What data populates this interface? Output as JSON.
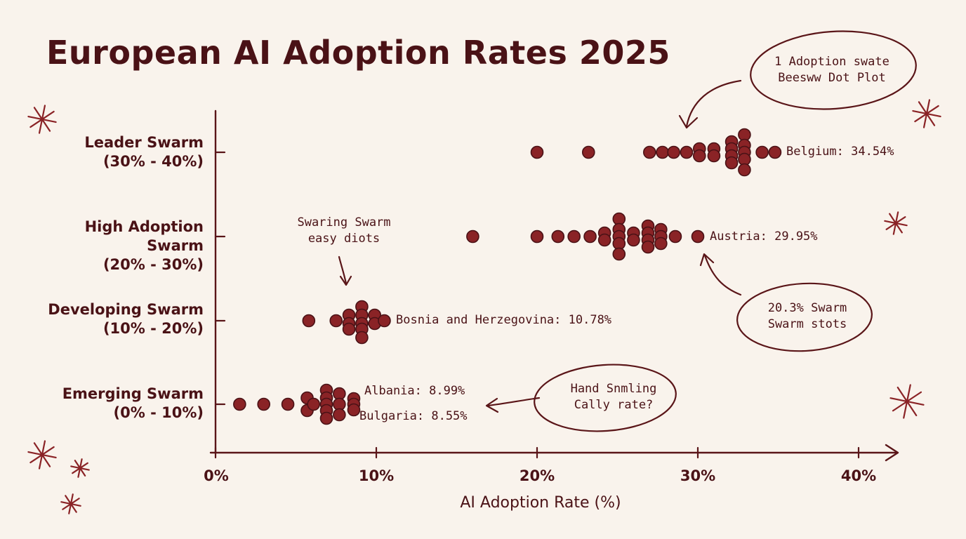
{
  "chart_data": {
    "type": "scatter",
    "subtype": "beeswarm",
    "title": "European AI Adoption Rates 2025",
    "xlabel": "AI Adoption Rate (%)",
    "xlim": [
      0,
      40
    ],
    "xticks": [
      "0%",
      "10%",
      "20%",
      "30%",
      "40%"
    ],
    "categories": [
      {
        "name": "Leader Swarm",
        "range": "(30% - 40%)"
      },
      {
        "name": "High Adoption Swarm",
        "range": "(20% - 30%)"
      },
      {
        "name": "Developing Swarm",
        "range": "(10% - 20%)"
      },
      {
        "name": "Emerging Swarm",
        "range": "(0% - 10%)"
      }
    ],
    "series": [
      {
        "category": "Leader Swarm",
        "points": [
          [
            20.0,
            0
          ],
          [
            23.2,
            0
          ],
          [
            27.0,
            0
          ],
          [
            27.8,
            0
          ],
          [
            28.5,
            0
          ],
          [
            29.3,
            0
          ],
          [
            30.1,
            0.5
          ],
          [
            30.1,
            -0.5
          ],
          [
            31.0,
            0.5
          ],
          [
            31.0,
            -0.5
          ],
          [
            32.1,
            1.5
          ],
          [
            32.1,
            0.5
          ],
          [
            32.1,
            -0.5
          ],
          [
            32.1,
            -1.5
          ],
          [
            32.9,
            2.5
          ],
          [
            32.9,
            1
          ],
          [
            32.9,
            0
          ],
          [
            32.9,
            -1
          ],
          [
            32.9,
            -2.5
          ],
          [
            34.0,
            0
          ],
          [
            34.8,
            0
          ]
        ]
      },
      {
        "category": "High Adoption Swarm",
        "points": [
          [
            16.0,
            0
          ],
          [
            20.0,
            0
          ],
          [
            21.3,
            0
          ],
          [
            22.3,
            0
          ],
          [
            23.3,
            0
          ],
          [
            24.2,
            0.5
          ],
          [
            24.2,
            -0.5
          ],
          [
            25.1,
            2.5
          ],
          [
            25.1,
            1
          ],
          [
            25.1,
            0
          ],
          [
            25.1,
            -1
          ],
          [
            25.1,
            -2.5
          ],
          [
            26.0,
            0.5
          ],
          [
            26.0,
            -0.5
          ],
          [
            26.9,
            1.5
          ],
          [
            26.9,
            0.5
          ],
          [
            26.9,
            -0.5
          ],
          [
            26.9,
            -1.5
          ],
          [
            27.7,
            1
          ],
          [
            27.7,
            0
          ],
          [
            27.7,
            -1
          ],
          [
            28.6,
            0
          ],
          [
            30.0,
            0
          ]
        ]
      },
      {
        "category": "Developing Swarm",
        "points": [
          [
            5.8,
            0
          ],
          [
            7.5,
            0
          ],
          [
            8.3,
            0.8
          ],
          [
            8.3,
            -0.4
          ],
          [
            8.3,
            -1.2
          ],
          [
            9.1,
            2
          ],
          [
            9.1,
            0.8
          ],
          [
            9.1,
            -0.4
          ],
          [
            9.1,
            -1.2
          ],
          [
            9.1,
            -2.4
          ],
          [
            9.9,
            0.8
          ],
          [
            9.9,
            -0.4
          ],
          [
            10.5,
            0
          ]
        ]
      },
      {
        "category": "Emerging Swarm",
        "points": [
          [
            1.5,
            0
          ],
          [
            3.0,
            0
          ],
          [
            4.5,
            0
          ],
          [
            5.7,
            0.9
          ],
          [
            5.7,
            -0.9
          ],
          [
            6.1,
            0
          ],
          [
            6.9,
            2
          ],
          [
            6.9,
            0.9
          ],
          [
            6.9,
            0
          ],
          [
            6.9,
            -0.9
          ],
          [
            6.9,
            -2
          ],
          [
            7.7,
            1.5
          ],
          [
            7.7,
            0
          ],
          [
            7.7,
            -1.5
          ],
          [
            8.6,
            0.8
          ],
          [
            8.6,
            0
          ],
          [
            8.6,
            -0.8
          ]
        ]
      }
    ],
    "point_labels": [
      {
        "category": "Leader Swarm",
        "text": "Belgium: 34.54%"
      },
      {
        "category": "High Adoption Swarm",
        "text": "Austria: 29.95%"
      },
      {
        "category": "Developing Swarm",
        "text": "Bosnia and Herzegovina: 10.78%"
      },
      {
        "category": "Emerging Swarm",
        "text": "Albania: 8.99%"
      },
      {
        "category": "Emerging Swarm",
        "text": "Bulgaria: 8.55%"
      }
    ],
    "annotations": [
      "1 Adoption swate\nBeesww Dot Plot",
      "Swaring Swarm\neasy diots",
      "20.3% Swarm\nSwarm stots",
      "Hand Snmling\nCally rate?"
    ],
    "colors": {
      "dot": "#8a2326",
      "dot_stroke": "#4a1216",
      "ink": "#5a1518",
      "background": "#f9f3ec"
    }
  }
}
